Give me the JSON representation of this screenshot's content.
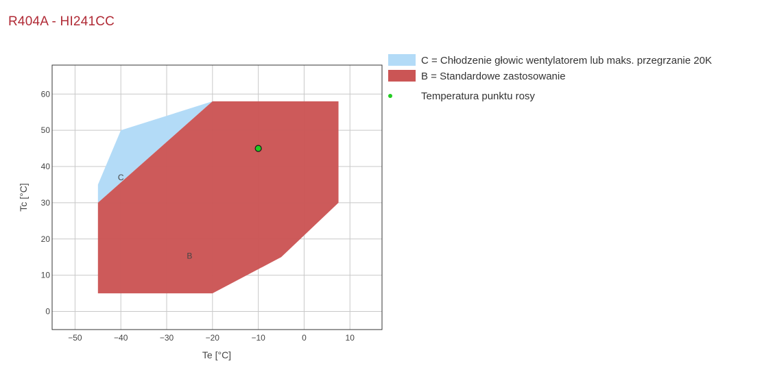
{
  "page": {
    "title": "R404A - HI241CC"
  },
  "chart_data": {
    "type": "area",
    "xlabel": "Te [°C]",
    "ylabel": "Tc [°C]",
    "xlim": [
      -55,
      17
    ],
    "ylim": [
      -5,
      68
    ],
    "xticks": [
      -50,
      -40,
      -30,
      -20,
      -10,
      0,
      10
    ],
    "yticks": [
      0,
      10,
      20,
      30,
      40,
      50,
      60
    ],
    "xtick_labels": [
      "−50",
      "−40",
      "−30",
      "−20",
      "−10",
      "0",
      "10"
    ],
    "ytick_labels": [
      "0",
      "10",
      "20",
      "30",
      "40",
      "50",
      "60"
    ],
    "grid": true,
    "legend_position": "right",
    "series": [
      {
        "name": "C = Chłodzenie głowic wentylatorem lub maks. przegrzanie 20K",
        "label": "C",
        "label_at": [
          -40,
          37
        ],
        "color": "#b3dbf7",
        "polygon": [
          [
            -45,
            30
          ],
          [
            -45,
            35
          ],
          [
            -40,
            50
          ],
          [
            -20,
            58
          ],
          [
            -45,
            30
          ]
        ]
      },
      {
        "name": "B = Standardowe zastosowanie",
        "label": "B",
        "label_at": [
          -25,
          15.3
        ],
        "color": "#cb5555",
        "polygon": [
          [
            -45,
            5
          ],
          [
            -20,
            5
          ],
          [
            -5,
            15
          ],
          [
            7.5,
            30
          ],
          [
            7.5,
            58
          ],
          [
            -20,
            58
          ],
          [
            -45,
            30
          ],
          [
            -45,
            5
          ]
        ]
      }
    ],
    "points": [
      {
        "name": "Temperatura punktu rosy",
        "x": -10,
        "y": 45,
        "color": "#22cc22"
      }
    ]
  }
}
